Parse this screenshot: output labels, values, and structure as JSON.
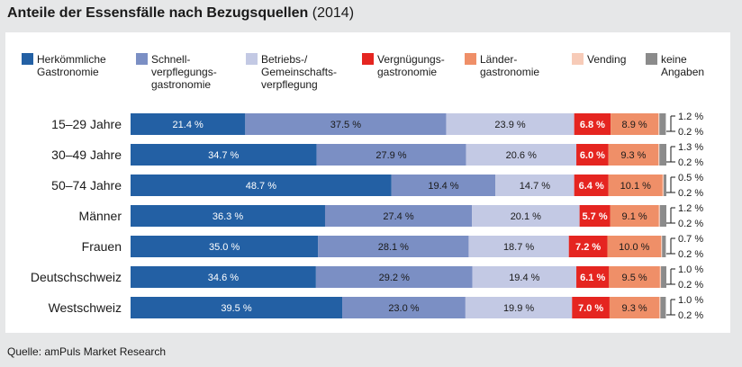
{
  "header": {
    "title_bold": "Anteile der Essensfälle nach Bezugsquellen",
    "title_year": "(2014)"
  },
  "footer": {
    "source": "Quelle: amPuls Market Research"
  },
  "chart_data": {
    "type": "bar",
    "orientation": "horizontal",
    "stacked": true,
    "normalized_percent": true,
    "title": "Anteile der Essensfälle nach Bezugsquellen (2014)",
    "categories": [
      "15–29 Jahre",
      "30–49 Jahre",
      "50–74 Jahre",
      "Männer",
      "Frauen",
      "Deutschschweiz",
      "Westschweiz"
    ],
    "series": [
      {
        "name": "Herkömmliche Gastronomie",
        "legend_lines": [
          "Herkömmliche",
          "Gastronomie"
        ],
        "color": "#2360a4",
        "label_color": "#ffffff",
        "values": [
          21.4,
          34.7,
          48.7,
          36.3,
          35.0,
          34.6,
          39.5
        ],
        "labels": [
          "21.4 %",
          "34.7 %",
          "48.7 %",
          "36.3 %",
          "35.0 %",
          "34.6 %",
          "39.5 %"
        ]
      },
      {
        "name": "Schnellverpflegungsgastronomie",
        "legend_lines": [
          "Schnell-",
          "verpflegungs-",
          "gastronomie"
        ],
        "color": "#7b8fc4",
        "label_color": "#1a1a1a",
        "values": [
          37.5,
          27.9,
          19.4,
          27.4,
          28.1,
          29.2,
          23.0
        ],
        "labels": [
          "37.5 %",
          "27.9 %",
          "19.4 %",
          "27.4 %",
          "28.1 %",
          "29.2 %",
          "23.0 %"
        ]
      },
      {
        "name": "Betriebs-/Gemeinschaftsverpflegung",
        "legend_lines": [
          "Betriebs-/",
          "Gemeinschafts-",
          "verpflegung"
        ],
        "color": "#c3c9e4",
        "label_color": "#1a1a1a",
        "values": [
          23.9,
          20.6,
          14.7,
          20.1,
          18.7,
          19.4,
          19.9
        ],
        "labels": [
          "23.9 %",
          "20.6 %",
          "14.7 %",
          "20.1 %",
          "18.7 %",
          "19.4 %",
          "19.9 %"
        ]
      },
      {
        "name": "Vergnügungsgastronomie",
        "legend_lines": [
          "Vergnügungs-",
          "gastronomie"
        ],
        "color": "#e52520",
        "label_color": "#ffffff",
        "values": [
          6.8,
          6.0,
          6.4,
          5.7,
          7.2,
          6.1,
          7.0
        ],
        "labels": [
          "6.8 %",
          "6.0 %",
          "6.4 %",
          "5.7 %",
          "7.2 %",
          "6.1 %",
          "7.0 %"
        ]
      },
      {
        "name": "Ländergastronomie",
        "legend_lines": [
          "Länder-",
          "gastronomie"
        ],
        "color": "#ef8f68",
        "label_color": "#1a1a1a",
        "values": [
          8.9,
          9.3,
          10.1,
          9.1,
          10.0,
          9.5,
          9.3
        ],
        "labels": [
          "8.9 %",
          "9.3 %",
          "10.1 %",
          "9.1 %",
          "10.0 %",
          "9.5 %",
          "9.3 %"
        ]
      },
      {
        "name": "Vending",
        "legend_lines": [
          "Vending"
        ],
        "color": "#f7cbb8",
        "label_color": "#1a1a1a",
        "values": [
          0.2,
          0.2,
          0.2,
          0.2,
          0.2,
          0.2,
          0.2
        ],
        "labels": [
          "0.2 %",
          "0.2 %",
          "0.2 %",
          "0.2 %",
          "0.2 %",
          "0.2 %",
          "0.2 %"
        ]
      },
      {
        "name": "keine Angaben",
        "legend_lines": [
          "keine",
          "Angaben"
        ],
        "color": "#8b8b8b",
        "label_color": "#1a1a1a",
        "values": [
          1.2,
          1.3,
          0.5,
          1.2,
          0.7,
          1.0,
          1.0
        ],
        "labels": [
          "1.2 %",
          "1.3 %",
          "0.5 %",
          "1.2 %",
          "0.7 %",
          "1.0 %",
          "1.0 %"
        ]
      }
    ],
    "legend_position": "top",
    "grid": false
  }
}
